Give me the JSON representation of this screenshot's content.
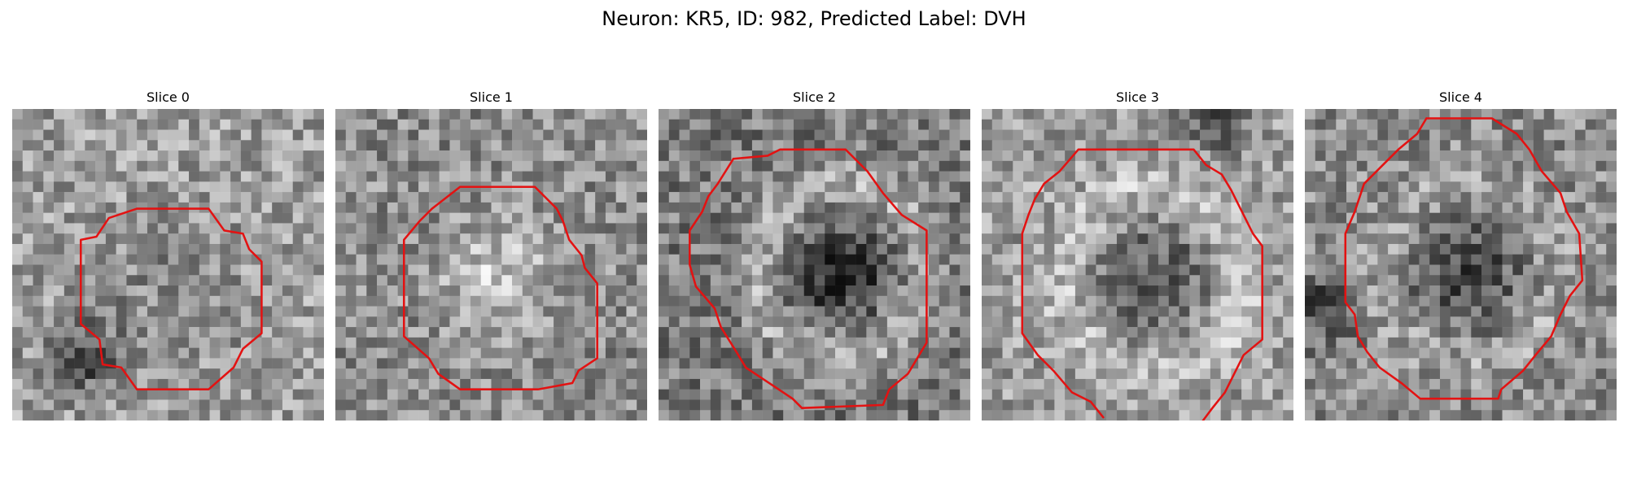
{
  "figure": {
    "title": "Neuron: KR5, ID: 982, Predicted Label: DVH"
  },
  "contour_color": "#e31212",
  "slices": [
    {
      "title": "Slice 0",
      "image": "grayscale microscopy patch",
      "contour": [
        [
          0.4,
          0.32
        ],
        [
          0.63,
          0.32
        ],
        [
          0.68,
          0.39
        ],
        [
          0.74,
          0.4
        ],
        [
          0.76,
          0.45
        ],
        [
          0.8,
          0.49
        ],
        [
          0.8,
          0.72
        ],
        [
          0.74,
          0.77
        ],
        [
          0.71,
          0.83
        ],
        [
          0.63,
          0.9
        ],
        [
          0.4,
          0.9
        ],
        [
          0.35,
          0.83
        ],
        [
          0.29,
          0.82
        ],
        [
          0.28,
          0.74
        ],
        [
          0.22,
          0.69
        ],
        [
          0.22,
          0.42
        ],
        [
          0.27,
          0.41
        ],
        [
          0.31,
          0.35
        ]
      ]
    },
    {
      "title": "Slice 1",
      "image": "grayscale microscopy patch",
      "contour": [
        [
          0.4,
          0.25
        ],
        [
          0.64,
          0.25
        ],
        [
          0.71,
          0.32
        ],
        [
          0.73,
          0.36
        ],
        [
          0.75,
          0.42
        ],
        [
          0.79,
          0.47
        ],
        [
          0.8,
          0.51
        ],
        [
          0.84,
          0.56
        ],
        [
          0.84,
          0.8
        ],
        [
          0.78,
          0.84
        ],
        [
          0.76,
          0.88
        ],
        [
          0.65,
          0.9
        ],
        [
          0.4,
          0.9
        ],
        [
          0.33,
          0.85
        ],
        [
          0.3,
          0.8
        ],
        [
          0.22,
          0.73
        ],
        [
          0.22,
          0.42
        ],
        [
          0.27,
          0.36
        ],
        [
          0.31,
          0.32
        ]
      ]
    },
    {
      "title": "Slice 2",
      "image": "grayscale microscopy patch",
      "contour": [
        [
          0.24,
          0.16
        ],
        [
          0.35,
          0.15
        ],
        [
          0.39,
          0.13
        ],
        [
          0.6,
          0.13
        ],
        [
          0.67,
          0.2
        ],
        [
          0.72,
          0.27
        ],
        [
          0.78,
          0.34
        ],
        [
          0.86,
          0.39
        ],
        [
          0.86,
          0.75
        ],
        [
          0.83,
          0.8
        ],
        [
          0.8,
          0.85
        ],
        [
          0.74,
          0.9
        ],
        [
          0.72,
          0.95
        ],
        [
          0.46,
          0.96
        ],
        [
          0.43,
          0.93
        ],
        [
          0.37,
          0.89
        ],
        [
          0.28,
          0.83
        ],
        [
          0.25,
          0.78
        ],
        [
          0.2,
          0.7
        ],
        [
          0.18,
          0.64
        ],
        [
          0.12,
          0.57
        ],
        [
          0.1,
          0.5
        ],
        [
          0.1,
          0.39
        ],
        [
          0.14,
          0.33
        ],
        [
          0.16,
          0.28
        ],
        [
          0.19,
          0.24
        ]
      ]
    },
    {
      "title": "Slice 3",
      "image": "grayscale microscopy patch",
      "contour_open": true,
      "contour": [
        [
          0.71,
          1.0
        ],
        [
          0.74,
          0.96
        ],
        [
          0.78,
          0.91
        ],
        [
          0.81,
          0.85
        ],
        [
          0.84,
          0.79
        ],
        [
          0.9,
          0.74
        ],
        [
          0.9,
          0.44
        ],
        [
          0.87,
          0.4
        ],
        [
          0.84,
          0.34
        ],
        [
          0.8,
          0.26
        ],
        [
          0.77,
          0.21
        ],
        [
          0.72,
          0.18
        ],
        [
          0.68,
          0.13
        ],
        [
          0.31,
          0.13
        ],
        [
          0.25,
          0.2
        ],
        [
          0.2,
          0.24
        ],
        [
          0.17,
          0.29
        ],
        [
          0.15,
          0.34
        ],
        [
          0.13,
          0.4
        ],
        [
          0.13,
          0.72
        ],
        [
          0.18,
          0.79
        ],
        [
          0.23,
          0.84
        ],
        [
          0.29,
          0.91
        ],
        [
          0.35,
          0.94
        ],
        [
          0.39,
          0.99
        ]
      ]
    },
    {
      "title": "Slice 4",
      "image": "grayscale microscopy patch",
      "contour": [
        [
          0.39,
          0.03
        ],
        [
          0.6,
          0.03
        ],
        [
          0.68,
          0.08
        ],
        [
          0.72,
          0.13
        ],
        [
          0.76,
          0.2
        ],
        [
          0.82,
          0.27
        ],
        [
          0.84,
          0.33
        ],
        [
          0.88,
          0.4
        ],
        [
          0.89,
          0.55
        ],
        [
          0.85,
          0.6
        ],
        [
          0.82,
          0.66
        ],
        [
          0.79,
          0.73
        ],
        [
          0.74,
          0.79
        ],
        [
          0.7,
          0.84
        ],
        [
          0.63,
          0.9
        ],
        [
          0.62,
          0.93
        ],
        [
          0.37,
          0.93
        ],
        [
          0.31,
          0.88
        ],
        [
          0.24,
          0.83
        ],
        [
          0.2,
          0.78
        ],
        [
          0.17,
          0.73
        ],
        [
          0.16,
          0.66
        ],
        [
          0.13,
          0.62
        ],
        [
          0.13,
          0.4
        ],
        [
          0.16,
          0.33
        ],
        [
          0.19,
          0.24
        ],
        [
          0.25,
          0.18
        ],
        [
          0.3,
          0.13
        ],
        [
          0.36,
          0.08
        ]
      ]
    }
  ]
}
